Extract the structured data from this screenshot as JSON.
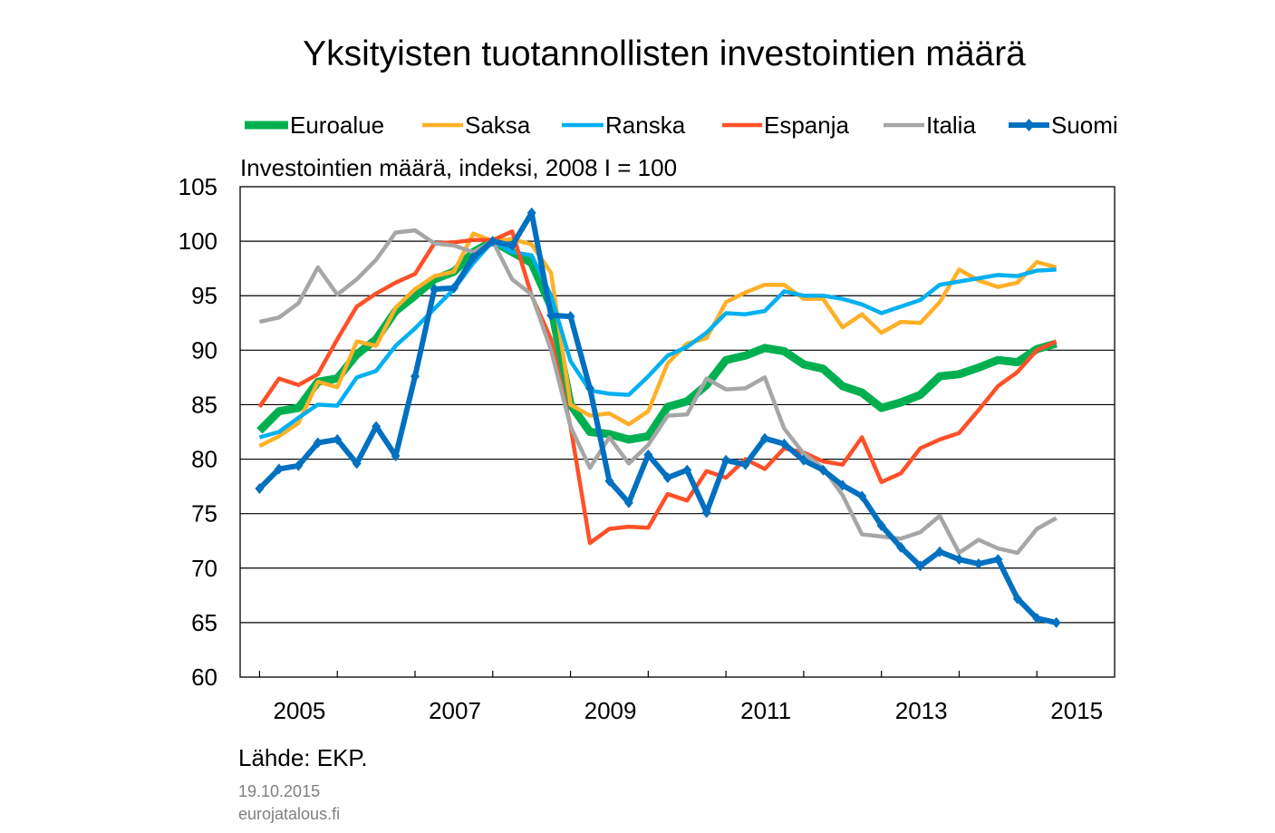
{
  "chart_data": {
    "type": "line",
    "title": "Yksityisten tuotannollisten investointien määrä",
    "subtitle": "Investointien määrä, indeksi, 2008 I = 100",
    "ylim": [
      60,
      105
    ],
    "yticks": [
      60,
      65,
      70,
      75,
      80,
      85,
      90,
      95,
      100,
      105
    ],
    "xlim": [
      2004.75,
      2016.0
    ],
    "xtick_labels": [
      {
        "x": 2005,
        "label": "2005"
      },
      {
        "x": 2007,
        "label": "2007"
      },
      {
        "x": 2009,
        "label": "2009"
      },
      {
        "x": 2011,
        "label": "2011"
      },
      {
        "x": 2013,
        "label": "2013"
      },
      {
        "x": 2015,
        "label": "2015"
      }
    ],
    "grid": "horizontal",
    "legend_position": "top",
    "x": [
      "2005Q1",
      "2005Q2",
      "2005Q3",
      "2005Q4",
      "2006Q1",
      "2006Q2",
      "2006Q3",
      "2006Q4",
      "2007Q1",
      "2007Q2",
      "2007Q3",
      "2007Q4",
      "2008Q1",
      "2008Q2",
      "2008Q3",
      "2008Q4",
      "2009Q1",
      "2009Q2",
      "2009Q3",
      "2009Q4",
      "2010Q1",
      "2010Q2",
      "2010Q3",
      "2010Q4",
      "2011Q1",
      "2011Q2",
      "2011Q3",
      "2011Q4",
      "2012Q1",
      "2012Q2",
      "2012Q3",
      "2012Q4",
      "2013Q1",
      "2013Q2",
      "2013Q3",
      "2013Q4",
      "2014Q1",
      "2014Q2",
      "2014Q3",
      "2014Q4",
      "2015Q1",
      "2015Q2"
    ],
    "series": [
      {
        "name": "Euroalue",
        "color": "#00b050",
        "width": 9,
        "markers": false,
        "values": [
          82.6,
          84.4,
          84.7,
          87.1,
          87.4,
          89.6,
          91.0,
          93.6,
          95.0,
          96.5,
          97.2,
          99.0,
          100.0,
          99.0,
          98.0,
          94.0,
          85.0,
          82.5,
          82.3,
          81.8,
          82.1,
          84.8,
          85.3,
          86.8,
          89.1,
          89.5,
          90.2,
          89.9,
          88.7,
          88.3,
          86.7,
          86.1,
          84.7,
          85.2,
          85.9,
          87.6,
          87.8,
          88.4,
          89.1,
          88.9,
          90.1,
          90.6
        ]
      },
      {
        "name": "Saksa",
        "color": "#ffb028",
        "width": 4.5,
        "markers": false,
        "values": [
          81.2,
          82.1,
          83.3,
          87.1,
          86.6,
          90.8,
          90.4,
          93.9,
          95.6,
          96.8,
          97.2,
          100.7,
          100.0,
          100.2,
          99.7,
          97.1,
          85.0,
          84.0,
          84.2,
          83.2,
          84.4,
          88.8,
          90.6,
          91.1,
          94.4,
          95.3,
          96.0,
          96.0,
          94.7,
          94.7,
          92.1,
          93.3,
          91.6,
          92.6,
          92.5,
          94.4,
          97.4,
          96.4,
          95.8,
          96.2,
          98.1,
          97.6
        ]
      },
      {
        "name": "Ranska",
        "color": "#00b0f0",
        "width": 4.5,
        "markers": false,
        "values": [
          82.0,
          82.5,
          83.8,
          85.0,
          84.9,
          87.5,
          88.1,
          90.4,
          92.0,
          93.8,
          95.6,
          98.0,
          100.0,
          99.0,
          98.7,
          95.0,
          89.0,
          86.3,
          86.0,
          85.9,
          87.6,
          89.5,
          90.3,
          91.6,
          93.4,
          93.3,
          93.6,
          95.4,
          95.0,
          95.0,
          94.7,
          94.2,
          93.4,
          94.0,
          94.6,
          96.0,
          96.3,
          96.6,
          96.9,
          96.8,
          97.3,
          97.4
        ]
      },
      {
        "name": "Espanja",
        "color": "#ff5028",
        "width": 4.5,
        "markers": false,
        "values": [
          84.8,
          87.4,
          86.8,
          87.8,
          91.0,
          94.0,
          95.2,
          96.2,
          97.0,
          99.8,
          99.9,
          100.1,
          100.1,
          100.9,
          95.0,
          91.0,
          83.0,
          72.3,
          73.6,
          73.8,
          73.7,
          76.8,
          76.2,
          78.9,
          78.3,
          80.0,
          79.1,
          81.0,
          80.6,
          79.8,
          79.5,
          82.0,
          77.9,
          78.7,
          81.0,
          81.8,
          82.4,
          84.5,
          86.7,
          88.0,
          90.0,
          90.8
        ]
      },
      {
        "name": "Italia",
        "color": "#a6a6a6",
        "width": 4.5,
        "markers": false,
        "values": [
          92.6,
          93.0,
          94.3,
          97.6,
          95.1,
          96.5,
          98.3,
          100.8,
          101.0,
          99.8,
          99.6,
          99.0,
          100.0,
          96.5,
          95.1,
          90.0,
          83.0,
          79.2,
          82.0,
          79.6,
          81.3,
          84.0,
          84.1,
          87.4,
          86.4,
          86.5,
          87.5,
          82.8,
          80.5,
          79.2,
          76.7,
          73.1,
          72.9,
          72.7,
          73.3,
          74.8,
          71.4,
          72.6,
          71.8,
          71.4,
          73.6,
          74.6
        ]
      },
      {
        "name": "Suomi",
        "color": "#0070c0",
        "width": 6,
        "markers": true,
        "values": [
          77.3,
          79.1,
          79.4,
          81.5,
          81.8,
          79.6,
          83.0,
          80.3,
          87.6,
          95.6,
          95.7,
          98.5,
          100.0,
          99.6,
          102.6,
          93.2,
          93.1,
          86.5,
          78.0,
          76.0,
          80.4,
          78.3,
          79.0,
          75.1,
          79.9,
          79.5,
          81.9,
          81.4,
          79.9,
          79.0,
          77.6,
          76.6,
          73.9,
          71.9,
          70.2,
          71.5,
          70.8,
          70.4,
          70.8,
          67.2,
          65.4,
          65.0
        ]
      }
    ]
  },
  "source": "Lähde: EKP.",
  "date": "19.10.2015",
  "site": "eurojatalous.fi"
}
